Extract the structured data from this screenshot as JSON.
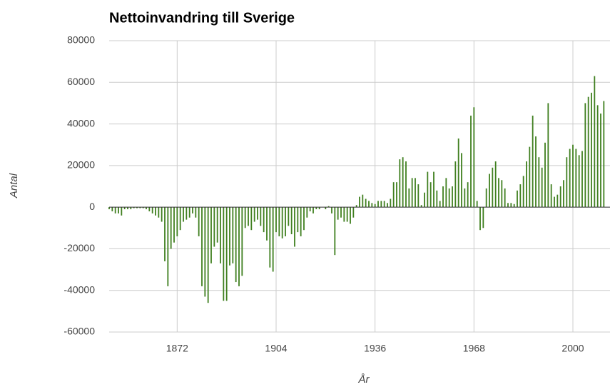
{
  "chart_data": {
    "type": "bar",
    "title": "Nettoinvandring till Sverige",
    "x_label": "År",
    "y_label": "Antal",
    "x": [
      1850,
      1851,
      1852,
      1853,
      1854,
      1855,
      1856,
      1857,
      1858,
      1859,
      1860,
      1861,
      1862,
      1863,
      1864,
      1865,
      1866,
      1867,
      1868,
      1869,
      1870,
      1871,
      1872,
      1873,
      1874,
      1875,
      1876,
      1877,
      1878,
      1879,
      1880,
      1881,
      1882,
      1883,
      1884,
      1885,
      1886,
      1887,
      1888,
      1889,
      1890,
      1891,
      1892,
      1893,
      1894,
      1895,
      1896,
      1897,
      1898,
      1899,
      1900,
      1901,
      1902,
      1903,
      1904,
      1905,
      1906,
      1907,
      1908,
      1909,
      1910,
      1911,
      1912,
      1913,
      1914,
      1915,
      1916,
      1917,
      1918,
      1919,
      1920,
      1921,
      1922,
      1923,
      1924,
      1925,
      1926,
      1927,
      1928,
      1929,
      1930,
      1931,
      1932,
      1933,
      1934,
      1935,
      1936,
      1937,
      1938,
      1939,
      1940,
      1941,
      1942,
      1943,
      1944,
      1945,
      1946,
      1947,
      1948,
      1949,
      1950,
      1951,
      1952,
      1953,
      1954,
      1955,
      1956,
      1957,
      1958,
      1959,
      1960,
      1961,
      1962,
      1963,
      1964,
      1965,
      1966,
      1967,
      1968,
      1969,
      1970,
      1971,
      1972,
      1973,
      1974,
      1975,
      1976,
      1977,
      1978,
      1979,
      1980,
      1981,
      1982,
      1983,
      1984,
      1985,
      1986,
      1987,
      1988,
      1989,
      1990,
      1991,
      1992,
      1993,
      1994,
      1995,
      1996,
      1997,
      1998,
      1999,
      2000,
      2001,
      2002,
      2003,
      2004,
      2005,
      2006,
      2007,
      2008,
      2009,
      2010
    ],
    "values": [
      -1000,
      -2000,
      -3000,
      -3000,
      -4000,
      -1000,
      -1000,
      -1000,
      -500,
      -500,
      -500,
      -500,
      -1000,
      -2000,
      -3000,
      -4000,
      -5000,
      -7000,
      -26000,
      -38000,
      -20000,
      -17000,
      -14000,
      -11000,
      -7000,
      -6000,
      -5000,
      -3000,
      -5000,
      -14000,
      -38000,
      -43000,
      -46000,
      -27000,
      -19000,
      -17000,
      -27000,
      -45000,
      -45000,
      -28000,
      -27000,
      -36000,
      -38000,
      -33000,
      -10000,
      -9000,
      -11000,
      -7000,
      -6000,
      -9000,
      -12000,
      -16000,
      -29000,
      -31000,
      -12000,
      -14000,
      -15000,
      -14000,
      -9000,
      -13000,
      -19000,
      -12000,
      -14000,
      -11000,
      -5000,
      -2000,
      -3000,
      -1000,
      -1000,
      0,
      -1000,
      500,
      -3000,
      -23000,
      -6000,
      -5000,
      -7000,
      -7000,
      -8000,
      -5000,
      1000,
      5000,
      6000,
      4000,
      3000,
      2000,
      1500,
      3000,
      3000,
      3000,
      2000,
      4000,
      12000,
      12000,
      23000,
      24000,
      22000,
      9000,
      14000,
      14000,
      11000,
      1000,
      7000,
      17000,
      12000,
      17000,
      8000,
      3000,
      10000,
      14000,
      9000,
      10000,
      22000,
      33000,
      26000,
      9000,
      12000,
      44000,
      48000,
      3000,
      -11000,
      -10000,
      9000,
      16000,
      19000,
      22000,
      14000,
      13000,
      9000,
      2000,
      2000,
      1500,
      8000,
      11000,
      15000,
      22000,
      29000,
      44000,
      34000,
      24000,
      19000,
      31000,
      50000,
      11000,
      5000,
      6000,
      10000,
      13000,
      24000,
      28000,
      30000,
      28000,
      25000,
      27000,
      50000,
      53000,
      55000,
      63000,
      49000,
      45000,
      51000
    ],
    "color": "#3f7f1f",
    "xlim": [
      1850,
      2012
    ],
    "xticks": [
      1872,
      1904,
      1936,
      1968,
      2000
    ],
    "ylim": [
      -60000,
      80000
    ],
    "yticks": [
      -60000,
      -40000,
      -20000,
      0,
      20000,
      40000,
      60000,
      80000
    ],
    "grid": true
  }
}
